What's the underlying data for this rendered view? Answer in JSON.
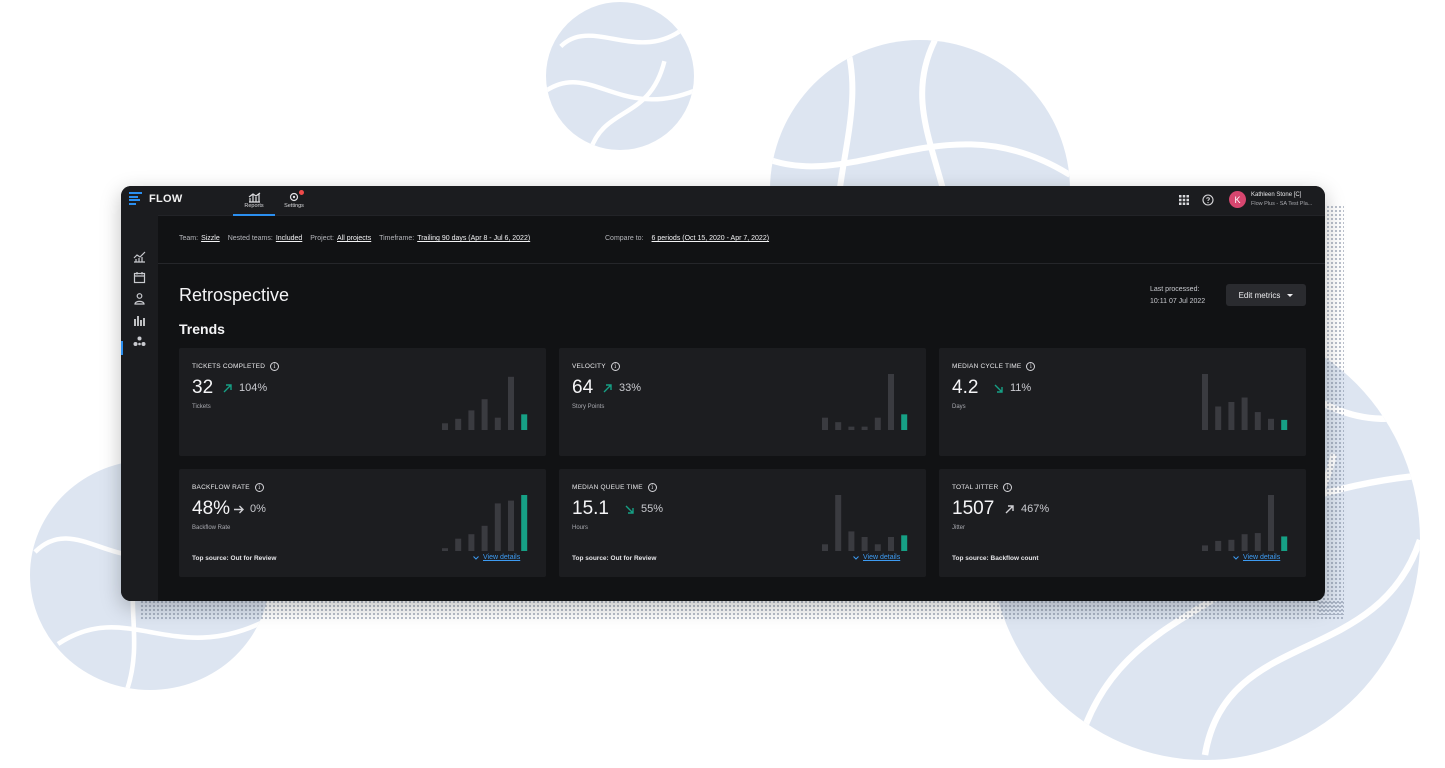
{
  "app": {
    "brand": "FLOW",
    "accent": "#2b8ff0",
    "positive_color": "#16a085",
    "nav": [
      {
        "label": "Reports",
        "icon": "reports-chart-icon",
        "active": true
      },
      {
        "label": "Settings",
        "icon": "gear-icon",
        "active": false,
        "badge": true
      }
    ],
    "user": {
      "initial": "K",
      "name": "Kathleen Stone [C]",
      "org": "Flow Plus - SA Test Pla..."
    }
  },
  "sidebar": {
    "icons": [
      "trend-chart-icon",
      "calendar-icon",
      "person-icon",
      "bar-chart-icon",
      "network-icon"
    ],
    "active_index": 3
  },
  "filters": {
    "team_label": "Team:",
    "team": "Sizzle",
    "nested_label": "Nested teams:",
    "nested": "Included",
    "project_label": "Project:",
    "project": "All projects",
    "timeframe_label": "Timeframe:",
    "timeframe": "Trailing 90 days (Apr 8 - Jul 6, 2022)",
    "compare_label": "Compare to:",
    "compare": "6 periods (Oct 15, 2020 - Apr 7, 2022)"
  },
  "page": {
    "title": "Retrospective",
    "section": "Trends",
    "processed_label": "Last processed:",
    "processed_time": "10:11 07 Jul 2022",
    "edit_button": "Edit metrics"
  },
  "cards": [
    {
      "label": "TICKETS COMPLETED",
      "value": "32",
      "arrow": "up",
      "arrow_color": "#16a085",
      "change": "104%",
      "unit": "Tickets",
      "bars": [
        0.12,
        0.2,
        0.35,
        0.55,
        0.22,
        0.95,
        0.28
      ]
    },
    {
      "label": "VELOCITY",
      "value": "64",
      "arrow": "up",
      "arrow_color": "#16a085",
      "change": "33%",
      "unit": "Story Points",
      "bars": [
        0.22,
        0.14,
        0.06,
        0.06,
        0.22,
        1.0,
        0.28
      ]
    },
    {
      "label": "MEDIAN CYCLE TIME",
      "value": "4.2",
      "arrow": "down",
      "arrow_color": "#16a085",
      "change": "11%",
      "unit": "Days",
      "bars": [
        1.0,
        0.42,
        0.5,
        0.58,
        0.32,
        0.2,
        0.18
      ]
    },
    {
      "label": "BACKFLOW RATE",
      "value": "48%",
      "arrow": "flat",
      "arrow_color": "#d0d0d4",
      "change": "0%",
      "unit": "Backflow Rate",
      "bars": [
        0.05,
        0.22,
        0.3,
        0.45,
        0.85,
        0.9,
        1.0
      ],
      "source": "Top source: Out for Review",
      "details": "View details"
    },
    {
      "label": "MEDIAN QUEUE TIME",
      "value": "15.1",
      "arrow": "down",
      "arrow_color": "#16a085",
      "change": "55%",
      "unit": "Hours",
      "bars": [
        0.12,
        1.0,
        0.35,
        0.25,
        0.12,
        0.25,
        0.28
      ],
      "source": "Top source: Out for Review",
      "details": "View details"
    },
    {
      "label": "TOTAL JITTER",
      "value": "1507",
      "arrow": "up-white",
      "arrow_color": "#d0d0d4",
      "change": "467%",
      "unit": "Jitter",
      "bars": [
        0.1,
        0.18,
        0.2,
        0.3,
        0.32,
        1.0,
        0.26
      ],
      "source": "Top source: Backflow count",
      "details": "View details"
    }
  ]
}
